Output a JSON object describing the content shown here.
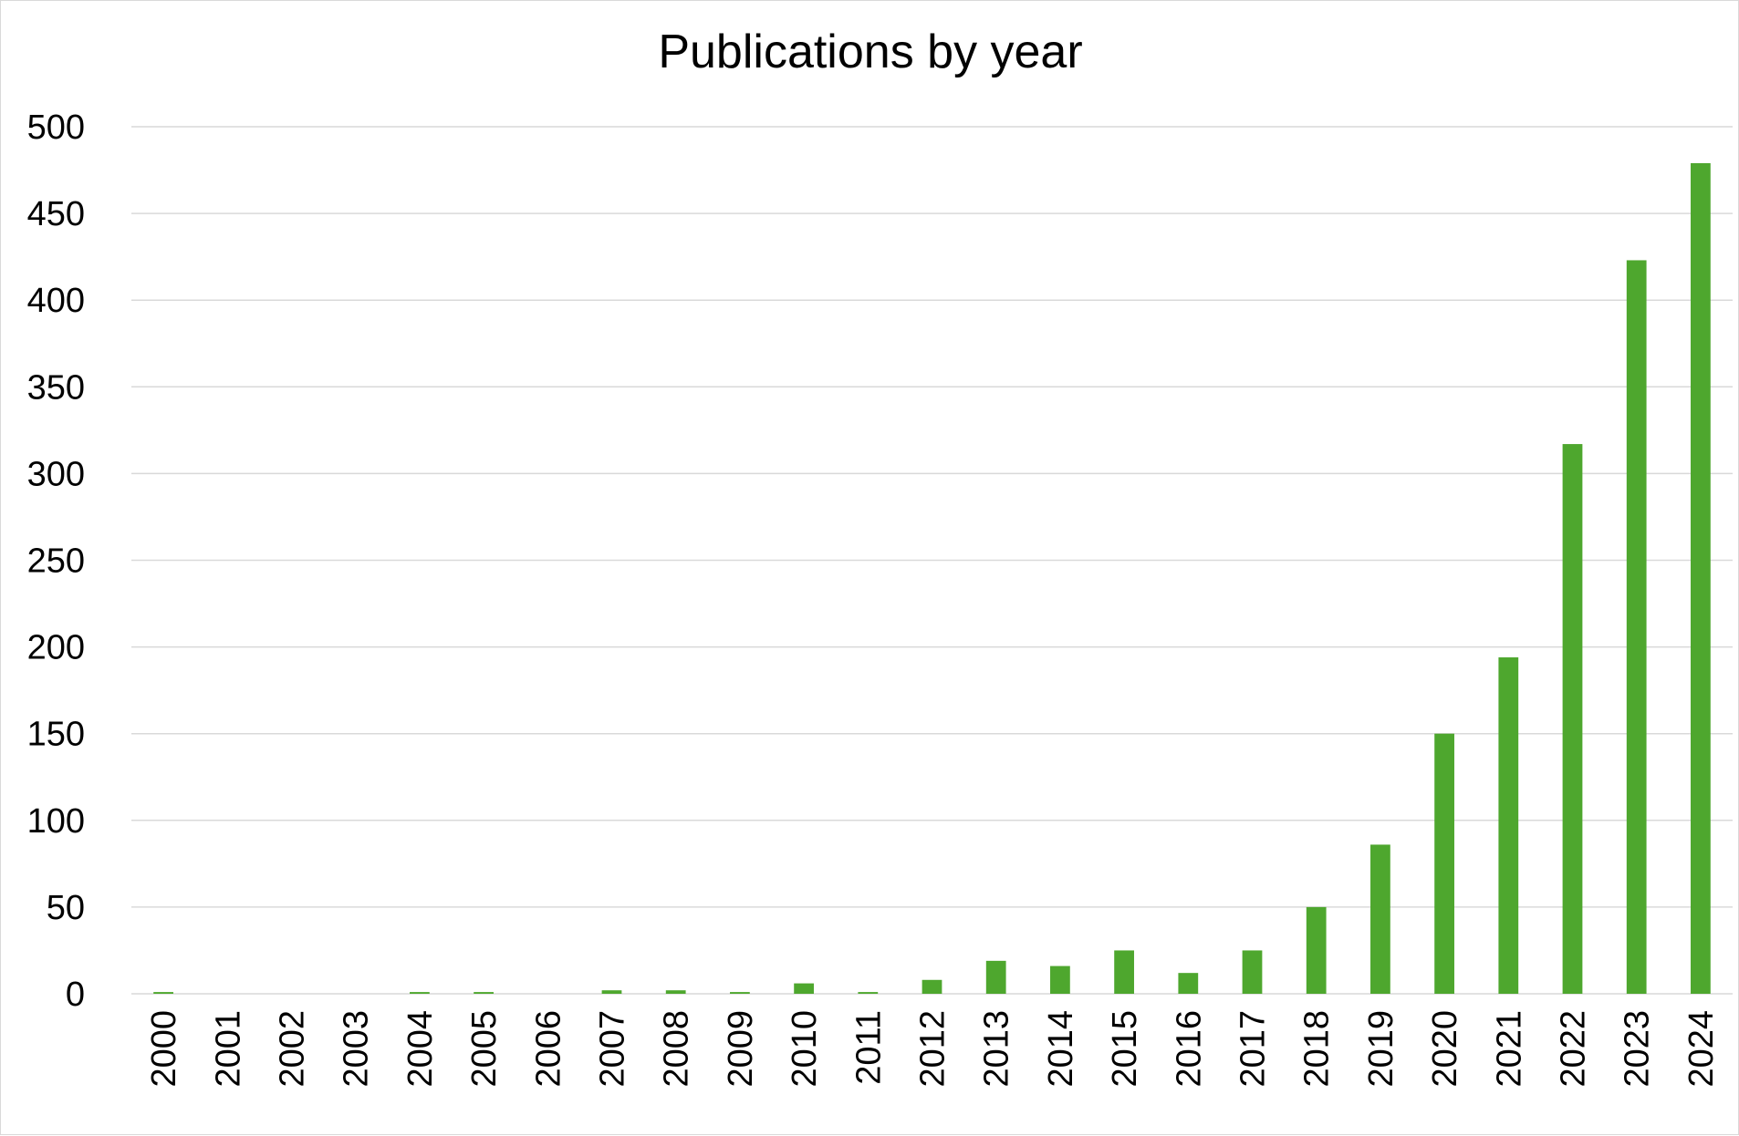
{
  "chart_data": {
    "type": "bar",
    "title": "Publications by year",
    "xlabel": "",
    "ylabel": "",
    "categories": [
      "2000",
      "2001",
      "2002",
      "2003",
      "2004",
      "2005",
      "2006",
      "2007",
      "2008",
      "2009",
      "2010",
      "2011",
      "2012",
      "2013",
      "2014",
      "2015",
      "2016",
      "2017",
      "2018",
      "2019",
      "2020",
      "2021",
      "2022",
      "2023",
      "2024"
    ],
    "series": [
      {
        "values": [
          1,
          0,
          0,
          0,
          1,
          1,
          0,
          2,
          2,
          1,
          6,
          1,
          8,
          19,
          16,
          25,
          12,
          25,
          50,
          86,
          150,
          194,
          317,
          423,
          479
        ]
      }
    ],
    "ylim": [
      0,
      500
    ],
    "yticks": [
      0,
      50,
      100,
      150,
      200,
      250,
      300,
      350,
      400,
      450,
      500
    ],
    "grid": true,
    "legend": "none",
    "colors": {
      "bar": "#4ea72e",
      "grid": "#d9d9d9",
      "text": "#000000"
    }
  }
}
